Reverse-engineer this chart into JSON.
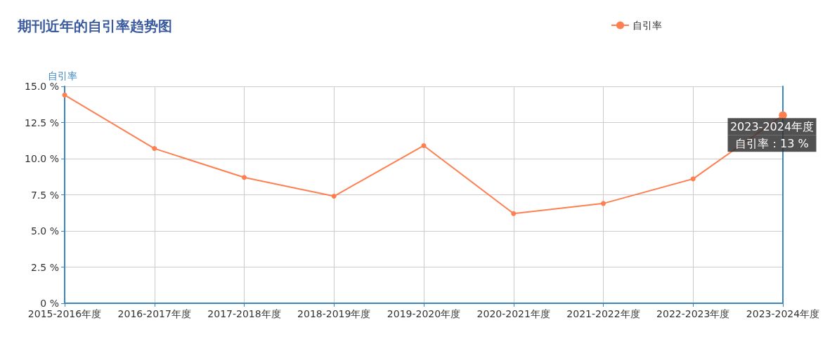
{
  "chart_data": {
    "type": "line",
    "title": "期刊近年的自引率趋势图",
    "ylabel": "自引率",
    "categories": [
      "2015-2016年度",
      "2016-2017年度",
      "2017-2018年度",
      "2018-2019年度",
      "2019-2020年度",
      "2020-2021年度",
      "2021-2022年度",
      "2022-2023年度",
      "2023-2024年度"
    ],
    "series": [
      {
        "name": "自引率",
        "color": "#ff7f50",
        "values": [
          14.4,
          10.7,
          8.7,
          7.4,
          10.9,
          6.2,
          6.9,
          8.6,
          13
        ]
      }
    ],
    "ylim": [
      0,
      15
    ],
    "yticks": [
      {
        "value": 0,
        "label": "0 %"
      },
      {
        "value": 2.5,
        "label": "2.5 %"
      },
      {
        "value": 5,
        "label": "5.0 %"
      },
      {
        "value": 7.5,
        "label": "7.5 %"
      },
      {
        "value": 10,
        "label": "10.0 %"
      },
      {
        "value": 12.5,
        "label": "12.5 %"
      },
      {
        "value": 15,
        "label": "15.0 %"
      }
    ],
    "annotations": [
      {
        "text": "2023-2024年度",
        "x": "2023-2024年度",
        "y": 13
      },
      {
        "text": "自引率 : 13 %",
        "x": "2023-2024年度",
        "y": 13
      }
    ],
    "grid": true,
    "legend": "top right",
    "marker": "circle",
    "line_style": "solid"
  }
}
